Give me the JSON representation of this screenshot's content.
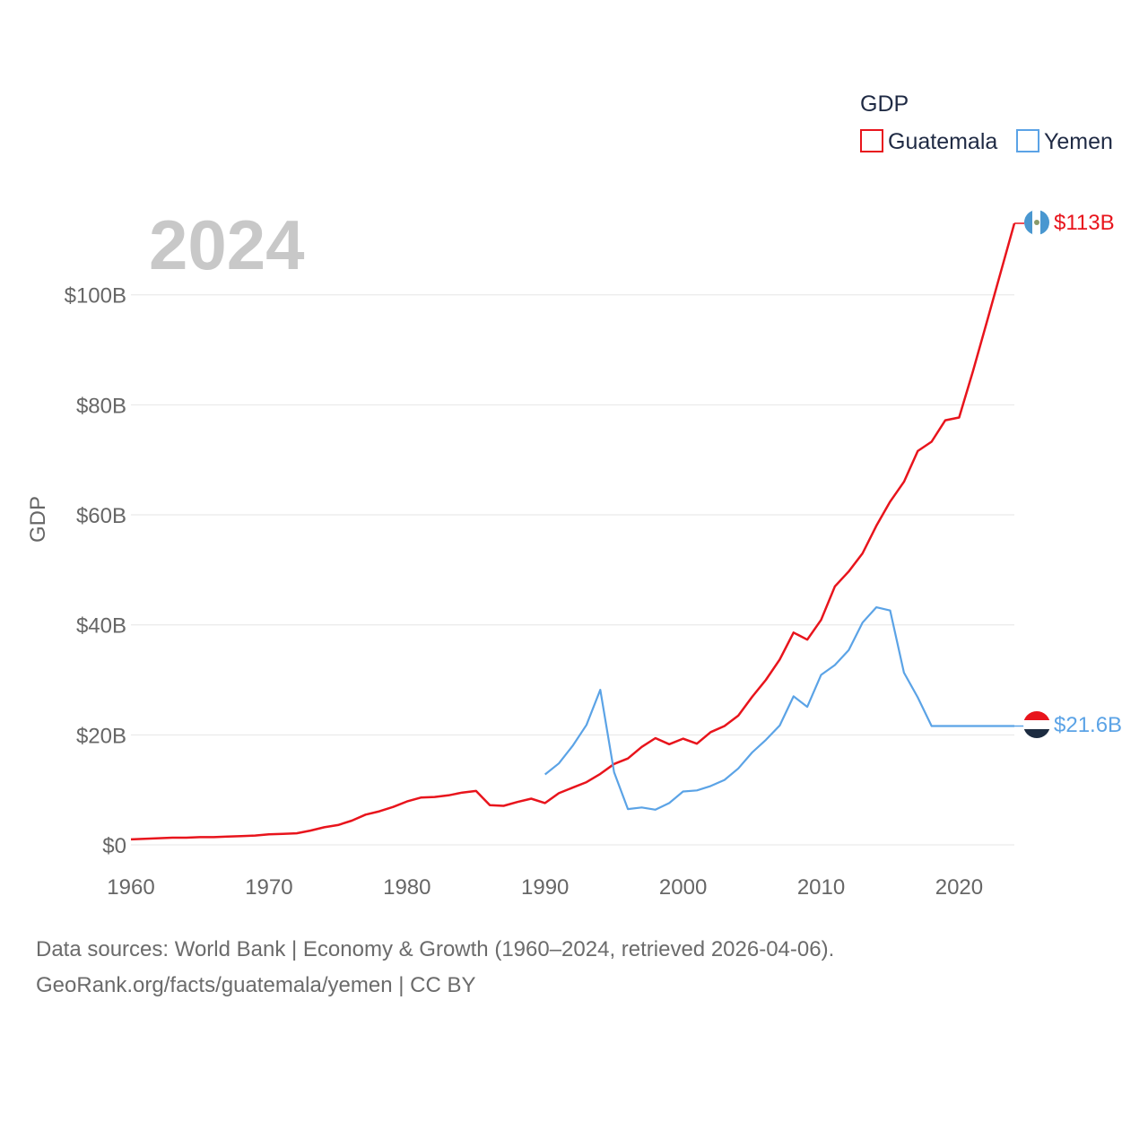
{
  "chart_data": {
    "type": "line",
    "year_label": "2024",
    "ylabel": "GDP",
    "xlim": [
      1960,
      2024
    ],
    "ylim": [
      0,
      113
    ],
    "x_ticks": [
      1960,
      1970,
      1980,
      1990,
      2000,
      2010,
      2020
    ],
    "y_ticks": [
      {
        "value": 0,
        "label": "$0"
      },
      {
        "value": 20,
        "label": "$20B"
      },
      {
        "value": 40,
        "label": "$40B"
      },
      {
        "value": 60,
        "label": "$60B"
      },
      {
        "value": 80,
        "label": "$80B"
      },
      {
        "value": 100,
        "label": "$100B"
      }
    ],
    "legend": {
      "title": "GDP",
      "position": "top-right"
    },
    "series": [
      {
        "name": "Guatemala",
        "color": "#e8141c",
        "end_label": "$113B",
        "end_icon": "guatemala-flag-icon",
        "points": [
          [
            1960,
            1.0
          ],
          [
            1961,
            1.1
          ],
          [
            1962,
            1.2
          ],
          [
            1963,
            1.3
          ],
          [
            1964,
            1.3
          ],
          [
            1965,
            1.4
          ],
          [
            1966,
            1.4
          ],
          [
            1967,
            1.5
          ],
          [
            1968,
            1.6
          ],
          [
            1969,
            1.7
          ],
          [
            1970,
            1.9
          ],
          [
            1971,
            2.0
          ],
          [
            1972,
            2.1
          ],
          [
            1973,
            2.6
          ],
          [
            1974,
            3.2
          ],
          [
            1975,
            3.6
          ],
          [
            1976,
            4.4
          ],
          [
            1977,
            5.5
          ],
          [
            1978,
            6.1
          ],
          [
            1979,
            6.9
          ],
          [
            1980,
            7.9
          ],
          [
            1981,
            8.6
          ],
          [
            1982,
            8.7
          ],
          [
            1983,
            9.0
          ],
          [
            1984,
            9.5
          ],
          [
            1985,
            9.8
          ],
          [
            1986,
            7.2
          ],
          [
            1987,
            7.1
          ],
          [
            1988,
            7.8
          ],
          [
            1989,
            8.4
          ],
          [
            1990,
            7.6
          ],
          [
            1991,
            9.4
          ],
          [
            1992,
            10.4
          ],
          [
            1993,
            11.4
          ],
          [
            1994,
            12.9
          ],
          [
            1995,
            14.7
          ],
          [
            1996,
            15.7
          ],
          [
            1997,
            17.8
          ],
          [
            1998,
            19.4
          ],
          [
            1999,
            18.3
          ],
          [
            2000,
            19.3
          ],
          [
            2001,
            18.4
          ],
          [
            2002,
            20.5
          ],
          [
            2003,
            21.6
          ],
          [
            2004,
            23.5
          ],
          [
            2005,
            26.9
          ],
          [
            2006,
            30.0
          ],
          [
            2007,
            33.7
          ],
          [
            2008,
            38.6
          ],
          [
            2009,
            37.3
          ],
          [
            2010,
            40.9
          ],
          [
            2011,
            47.0
          ],
          [
            2012,
            49.7
          ],
          [
            2013,
            53.0
          ],
          [
            2014,
            58.0
          ],
          [
            2015,
            62.4
          ],
          [
            2016,
            66.0
          ],
          [
            2017,
            71.6
          ],
          [
            2018,
            73.3
          ],
          [
            2019,
            77.2
          ],
          [
            2020,
            77.7
          ],
          [
            2021,
            86.1
          ],
          [
            2022,
            95.0
          ],
          [
            2023,
            104.0
          ],
          [
            2024,
            113.0
          ]
        ]
      },
      {
        "name": "Yemen",
        "color": "#5ba3e6",
        "end_label": "$21.6B",
        "end_icon": "yemen-flag-icon",
        "points": [
          [
            1990,
            12.8
          ],
          [
            1991,
            14.8
          ],
          [
            1992,
            18.0
          ],
          [
            1993,
            21.8
          ],
          [
            1994,
            28.2
          ],
          [
            1995,
            13.2
          ],
          [
            1996,
            6.5
          ],
          [
            1997,
            6.8
          ],
          [
            1998,
            6.4
          ],
          [
            1999,
            7.6
          ],
          [
            2000,
            9.7
          ],
          [
            2001,
            9.9
          ],
          [
            2002,
            10.7
          ],
          [
            2003,
            11.8
          ],
          [
            2004,
            13.9
          ],
          [
            2005,
            16.8
          ],
          [
            2006,
            19.1
          ],
          [
            2007,
            21.7
          ],
          [
            2008,
            27.0
          ],
          [
            2009,
            25.1
          ],
          [
            2010,
            30.9
          ],
          [
            2011,
            32.7
          ],
          [
            2012,
            35.4
          ],
          [
            2013,
            40.4
          ],
          [
            2014,
            43.2
          ],
          [
            2015,
            42.6
          ],
          [
            2016,
            31.3
          ],
          [
            2017,
            26.8
          ],
          [
            2018,
            21.6
          ],
          [
            2019,
            21.6
          ],
          [
            2020,
            21.6
          ],
          [
            2021,
            21.6
          ],
          [
            2022,
            21.6
          ],
          [
            2023,
            21.6
          ],
          [
            2024,
            21.6
          ]
        ]
      }
    ]
  },
  "footer": {
    "source_line": "Data sources: World Bank | Economy & Growth (1960–2024, retrieved 2026-04-06).",
    "credit_line": "GeoRank.org/facts/guatemala/yemen | CC BY"
  }
}
